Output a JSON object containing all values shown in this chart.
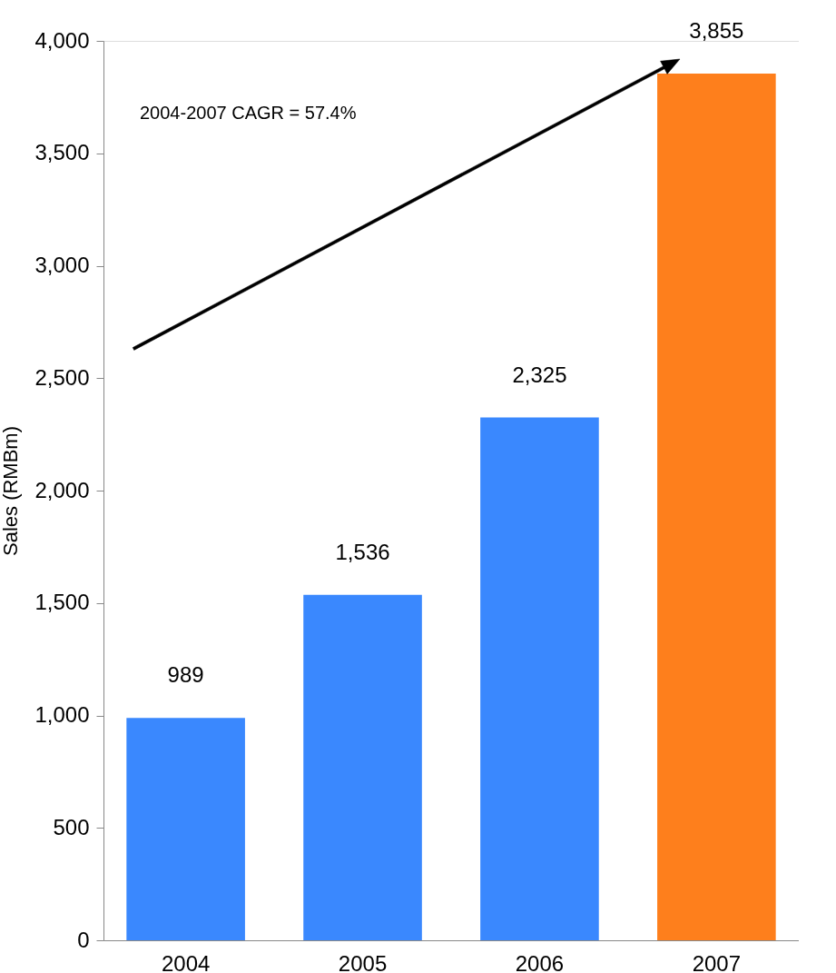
{
  "chart_data": {
    "type": "bar",
    "ylabel": "Sales (RMBm)",
    "categories": [
      "2004",
      "2005",
      "2006",
      "2007"
    ],
    "values": [
      989,
      1536,
      2325,
      3855
    ],
    "colors": [
      "#3a88fe",
      "#3a88fe",
      "#3a88fe",
      "#fe7f1c"
    ],
    "ylim": [
      0,
      4000
    ],
    "yticks": [
      0,
      500,
      {
        "value": 1000,
        "label": "1,000"
      },
      {
        "value": 1500,
        "label": "1,500"
      },
      {
        "value": 2000,
        "label": "2,000"
      },
      {
        "value": 2500,
        "label": "2,500"
      },
      {
        "value": 3000,
        "label": "3,000"
      },
      {
        "value": 3500,
        "label": "3,500"
      },
      {
        "value": 4000,
        "label": "4,000"
      }
    ],
    "grid": false,
    "value_labels": [
      "989",
      "1,536",
      "2,325",
      "3,855"
    ],
    "annotations": [
      "2004-2007 CAGR = 57.4%"
    ]
  }
}
